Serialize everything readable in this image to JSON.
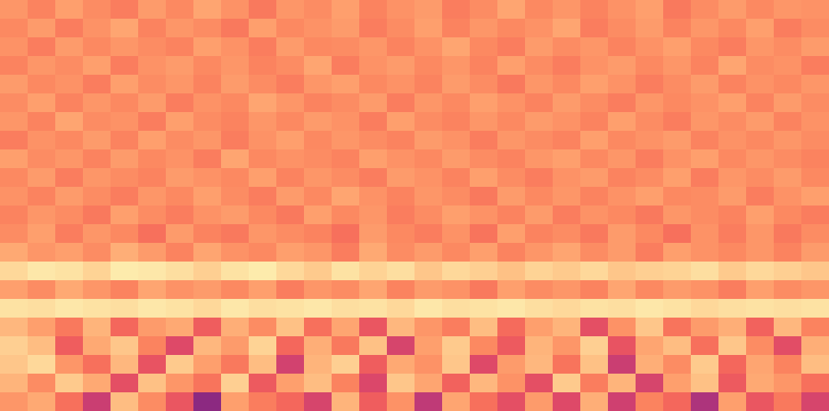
{
  "chart_data": {
    "type": "heatmap",
    "color": "magma",
    "zlim": [
      0,
      100
    ],
    "tick_labels": false,
    "cells": [
      [
        78,
        74,
        80,
        76,
        73,
        79,
        75,
        81,
        77,
        72,
        78,
        76,
        80,
        74,
        77,
        79,
        73,
        76,
        81,
        75,
        78,
        74,
        77,
        80,
        72,
        76,
        79,
        75,
        78,
        77
      ],
      [
        75,
        79,
        73,
        77,
        81,
        74,
        78,
        76,
        72,
        80,
        75,
        77,
        79,
        73,
        76,
        80,
        74,
        78,
        75,
        77,
        81,
        73,
        76,
        79,
        74,
        78,
        75,
        80,
        73,
        76
      ],
      [
        77,
        73,
        79,
        75,
        78,
        76,
        74,
        80,
        77,
        73,
        79,
        75,
        76,
        78,
        74,
        77,
        81,
        75,
        73,
        79,
        76,
        78,
        74,
        77,
        80,
        75,
        73,
        78,
        76,
        79
      ],
      [
        74,
        78,
        76,
        80,
        73,
        77,
        79,
        75,
        78,
        74,
        76,
        81,
        73,
        77,
        79,
        75,
        78,
        74,
        80,
        76,
        73,
        77,
        79,
        75,
        78,
        74,
        81,
        76,
        77,
        73
      ],
      [
        79,
        75,
        77,
        73,
        80,
        76,
        78,
        74,
        79,
        76,
        73,
        78,
        80,
        75,
        77,
        74,
        79,
        76,
        72,
        78,
        75,
        80,
        77,
        73,
        76,
        79,
        74,
        77,
        75,
        78
      ],
      [
        76,
        80,
        74,
        78,
        75,
        79,
        73,
        77,
        75,
        81,
        78,
        74,
        76,
        79,
        73,
        78,
        75,
        80,
        77,
        74,
        79,
        76,
        73,
        78,
        75,
        77,
        80,
        74,
        79,
        76
      ],
      [
        78,
        74,
        81,
        76,
        77,
        73,
        80,
        76,
        74,
        78,
        75,
        79,
        77,
        73,
        80,
        76,
        74,
        78,
        75,
        79,
        77,
        74,
        80,
        76,
        73,
        78,
        76,
        79,
        74,
        77
      ],
      [
        73,
        77,
        75,
        79,
        74,
        80,
        76,
        78,
        73,
        77,
        80,
        75,
        78,
        76,
        74,
        79,
        77,
        73,
        78,
        76,
        74,
        80,
        75,
        77,
        79,
        74,
        77,
        75,
        78,
        76
      ],
      [
        80,
        76,
        78,
        74,
        79,
        75,
        77,
        73,
        81,
        75,
        77,
        76,
        74,
        80,
        77,
        75,
        79,
        76,
        74,
        78,
        80,
        75,
        78,
        73,
        77,
        80,
        75,
        78,
        76,
        74
      ],
      [
        75,
        79,
        73,
        78,
        76,
        74,
        79,
        77,
        75,
        80,
        74,
        78,
        76,
        73,
        79,
        77,
        74,
        80,
        76,
        73,
        77,
        79,
        74,
        76,
        80,
        73,
        78,
        76,
        79,
        75
      ],
      [
        77,
        74,
        79,
        76,
        73,
        78,
        75,
        80,
        76,
        73,
        79,
        75,
        81,
        77,
        74,
        78,
        76,
        72,
        79,
        75,
        78,
        74,
        77,
        80,
        75,
        76,
        79,
        73,
        77,
        80
      ],
      [
        74,
        78,
        76,
        72,
        80,
        76,
        73,
        77,
        79,
        75,
        72,
        80,
        75,
        78,
        73,
        76,
        80,
        77,
        74,
        79,
        73,
        77,
        75,
        72,
        78,
        76,
        74,
        80,
        75,
        73
      ],
      [
        76,
        80,
        73,
        78,
        75,
        70,
        79,
        74,
        72,
        78,
        76,
        74,
        70,
        79,
        75,
        73,
        77,
        71,
        80,
        74,
        76,
        72,
        79,
        75,
        70,
        77,
        73,
        78,
        72,
        76
      ],
      [
        82,
        78,
        80,
        76,
        83,
        79,
        74,
        81,
        77,
        75,
        80,
        78,
        73,
        82,
        76,
        79,
        75,
        80,
        74,
        78,
        81,
        76,
        79,
        73,
        80,
        77,
        75,
        78,
        74,
        79
      ],
      [
        92,
        95,
        94,
        91,
        96,
        95,
        93,
        90,
        94,
        96,
        92,
        89,
        94,
        91,
        93,
        88,
        92,
        90,
        87,
        91,
        89,
        92,
        88,
        90,
        91,
        93,
        89,
        92,
        90,
        88
      ],
      [
        80,
        76,
        82,
        78,
        74,
        81,
        77,
        79,
        75,
        80,
        73,
        78,
        76,
        81,
        74,
        79,
        77,
        72,
        80,
        76,
        78,
        74,
        81,
        75,
        79,
        77,
        73,
        80,
        76,
        78
      ],
      [
        94,
        93,
        95,
        94,
        93,
        95,
        94,
        92,
        95,
        93,
        94,
        95,
        93,
        94,
        92,
        95,
        93,
        94,
        95,
        93,
        92,
        94,
        93,
        95,
        94,
        92,
        93,
        94,
        93,
        94
      ],
      [
        85,
        80,
        72,
        84,
        68,
        79,
        82,
        66,
        83,
        76,
        87,
        70,
        81,
        64,
        85,
        78,
        73,
        86,
        69,
        80,
        84,
        62,
        77,
        88,
        71,
        79,
        83,
        67,
        85,
        74
      ],
      [
        90,
        86,
        66,
        82,
        88,
        74,
        60,
        85,
        79,
        91,
        68,
        83,
        72,
        87,
        58,
        80,
        89,
        75,
        65,
        84,
        78,
        90,
        63,
        81,
        86,
        70,
        88,
        76,
        61,
        83
      ],
      [
        88,
        92,
        78,
        70,
        85,
        63,
        89,
        80,
        72,
        86,
        57,
        84,
        90,
        66,
        82,
        77,
        88,
        60,
        79,
        85,
        71,
        87,
        55,
        83,
        76,
        89,
        68,
        81,
        74,
        86
      ],
      [
        84,
        76,
        89,
        82,
        62,
        87,
        78,
        71,
        90,
        65,
        80,
        86,
        74,
        59,
        88,
        81,
        67,
        85,
        77,
        62,
        89,
        73,
        84,
        58,
        80,
        87,
        65,
        82,
        78,
        70
      ],
      [
        78,
        82,
        70,
        55,
        86,
        76,
        64,
        40,
        80,
        73,
        68,
        58,
        84,
        66,
        77,
        52,
        81,
        70,
        62,
        79,
        60,
        83,
        56,
        74,
        68,
        48,
        80,
        64,
        72,
        58
      ]
    ]
  }
}
